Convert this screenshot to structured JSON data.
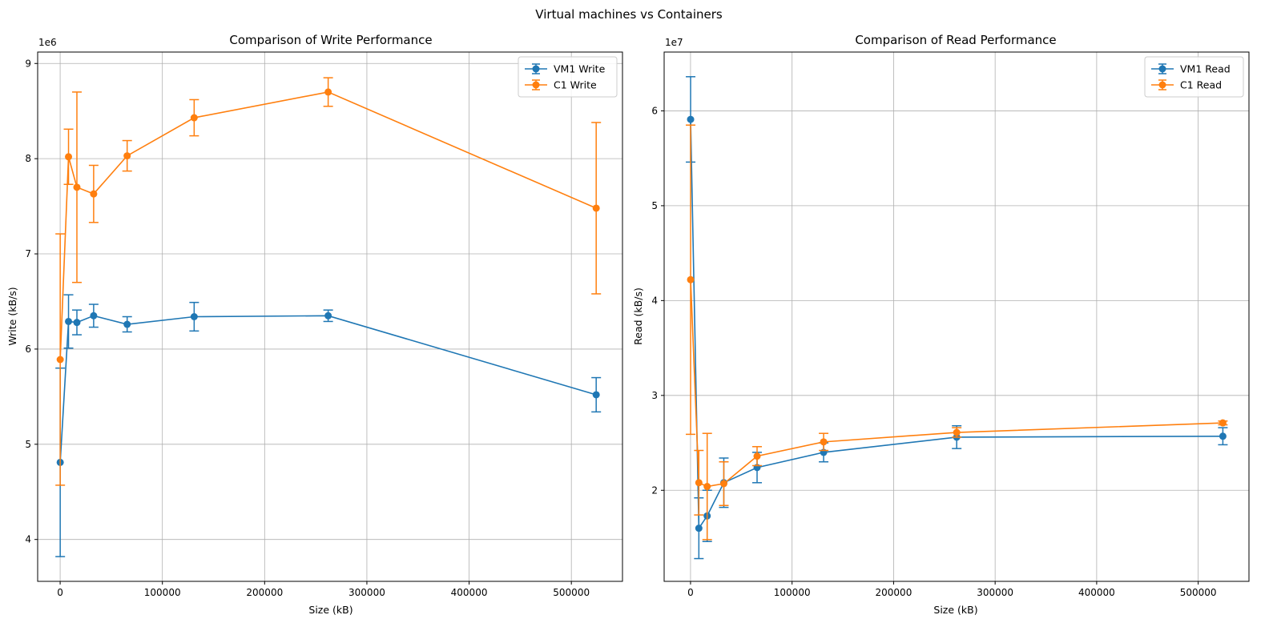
{
  "figure": {
    "suptitle": "Virtual machines vs Containers"
  },
  "colors": {
    "vm": "#1f77b4",
    "c": "#ff7f0e"
  },
  "chart_data": [
    {
      "type": "line",
      "title": "Comparison of Write Performance",
      "xlabel": "Size (kB)",
      "ylabel": "Write (kB/s)",
      "y_offset_label": "1e6",
      "xlim": [
        -22000,
        550000
      ],
      "ylim": [
        3560000,
        9120000
      ],
      "x_ticks": [
        0,
        100000,
        200000,
        300000,
        400000,
        500000
      ],
      "x_tick_labels": [
        "0",
        "100000",
        "200000",
        "300000",
        "400000",
        "500000"
      ],
      "y_ticks": [
        4000000,
        5000000,
        6000000,
        7000000,
        8000000,
        9000000
      ],
      "y_tick_labels": [
        "4",
        "5",
        "6",
        "7",
        "8",
        "9"
      ],
      "grid": true,
      "legend_position": "top-right",
      "series": [
        {
          "name": "VM1 Write",
          "color_key": "vm",
          "x": [
            64,
            8192,
            16384,
            32768,
            65536,
            131072,
            262144,
            524288
          ],
          "y": [
            4810000,
            6290000,
            6280000,
            6350000,
            6260000,
            6340000,
            6350000,
            5520000
          ],
          "err": [
            990000,
            280000,
            130000,
            120000,
            80000,
            150000,
            60000,
            180000
          ]
        },
        {
          "name": "C1 Write",
          "color_key": "c",
          "x": [
            64,
            8192,
            16384,
            32768,
            65536,
            131072,
            262144,
            524288
          ],
          "y": [
            5890000,
            8020000,
            7700000,
            7630000,
            8030000,
            8430000,
            8700000,
            7480000
          ],
          "err": [
            1320000,
            290000,
            1000000,
            300000,
            160000,
            190000,
            150000,
            900000
          ]
        }
      ]
    },
    {
      "type": "line",
      "title": "Comparison of Read Performance",
      "xlabel": "Size (kB)",
      "ylabel": "Read (kB/s)",
      "y_offset_label": "1e7",
      "xlim": [
        -26000,
        550000
      ],
      "ylim": [
        10400000,
        66200000
      ],
      "x_ticks": [
        0,
        100000,
        200000,
        300000,
        400000,
        500000
      ],
      "x_tick_labels": [
        "0",
        "100000",
        "200000",
        "300000",
        "400000",
        "500000"
      ],
      "y_ticks": [
        20000000,
        30000000,
        40000000,
        50000000,
        60000000
      ],
      "y_tick_labels": [
        "2",
        "3",
        "4",
        "5",
        "6"
      ],
      "grid": true,
      "legend_position": "top-right",
      "series": [
        {
          "name": "VM1 Read",
          "color_key": "vm",
          "x": [
            64,
            8192,
            16384,
            32768,
            65536,
            131072,
            262144,
            524288
          ],
          "y": [
            59100000,
            16000000,
            17300000,
            20800000,
            22400000,
            24000000,
            25600000,
            25700000
          ],
          "err": [
            4500000,
            3200000,
            2700000,
            2600000,
            1600000,
            1000000,
            1200000,
            900000
          ]
        },
        {
          "name": "C1 Read",
          "color_key": "c",
          "x": [
            64,
            8192,
            16384,
            32768,
            65536,
            131072,
            262144,
            524288
          ],
          "y": [
            42200000,
            20800000,
            20400000,
            20700000,
            23600000,
            25100000,
            26100000,
            27100000
          ],
          "err": [
            16300000,
            3400000,
            5600000,
            2300000,
            1000000,
            900000,
            500000,
            200000
          ]
        }
      ]
    }
  ]
}
